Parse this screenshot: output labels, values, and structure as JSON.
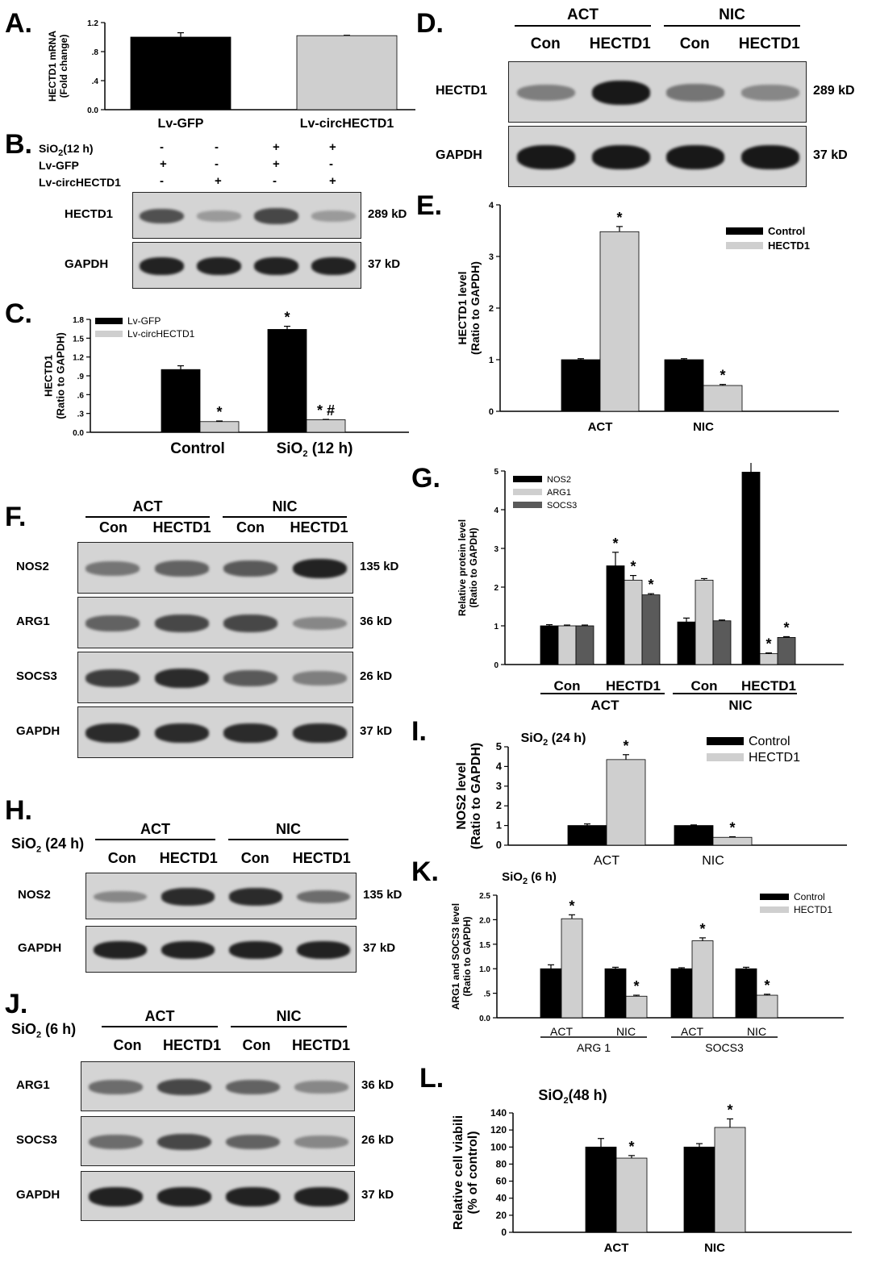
{
  "panels": {
    "A": "A.",
    "B": "B.",
    "C": "C.",
    "D": "D.",
    "E": "E.",
    "F": "F.",
    "G": "G.",
    "H": "H.",
    "I": "I.",
    "J": "J.",
    "K": "K.",
    "L": "L."
  },
  "blot_b": {
    "rows": [
      {
        "label": "SiO2(12 h)",
        "marks": [
          "-",
          "-",
          "+",
          "+"
        ]
      },
      {
        "label": "Lv-GFP",
        "marks": [
          "+",
          "-",
          "+",
          "-"
        ]
      },
      {
        "label": "Lv-circHECTD1",
        "marks": [
          "-",
          "+",
          "-",
          "+"
        ]
      }
    ],
    "blots": [
      {
        "name": "HECTD1",
        "kd": "289 kD",
        "bands": [
          0.65,
          0.25,
          0.7,
          0.25
        ]
      },
      {
        "name": "GAPDH",
        "kd": "37 kD",
        "bands": [
          0.9,
          0.9,
          0.9,
          0.9
        ]
      }
    ]
  },
  "blot_d": {
    "groups": [
      "ACT",
      "NIC"
    ],
    "lanes": [
      "Con",
      "HECTD1",
      "Con",
      "HECTD1"
    ],
    "blots": [
      {
        "name": "HECTD1",
        "kd": "289 kD",
        "bands": [
          0.4,
          0.95,
          0.45,
          0.35
        ]
      },
      {
        "name": "GAPDH",
        "kd": "37 kD",
        "bands": [
          0.95,
          0.95,
          0.95,
          0.95
        ]
      }
    ]
  },
  "blot_f": {
    "groups": [
      "ACT",
      "NIC"
    ],
    "lanes": [
      "Con",
      "HECTD1",
      "Con",
      "HECTD1"
    ],
    "blots": [
      {
        "name": "NOS2",
        "kd": "135 kD",
        "bands": [
          0.45,
          0.55,
          0.6,
          0.9
        ]
      },
      {
        "name": "ARG1",
        "kd": "36 kD",
        "bands": [
          0.55,
          0.7,
          0.7,
          0.35
        ]
      },
      {
        "name": "SOCS3",
        "kd": "26 kD",
        "bands": [
          0.75,
          0.85,
          0.6,
          0.4
        ]
      },
      {
        "name": "GAPDH",
        "kd": "37 kD",
        "bands": [
          0.85,
          0.85,
          0.85,
          0.85
        ]
      }
    ]
  },
  "blot_h": {
    "condition": "SiO2 (24 h)",
    "groups": [
      "ACT",
      "NIC"
    ],
    "lanes": [
      "Con",
      "HECTD1",
      "Con",
      "HECTD1"
    ],
    "blots": [
      {
        "name": "NOS2",
        "kd": "135 kD",
        "bands": [
          0.35,
          0.85,
          0.85,
          0.5
        ]
      },
      {
        "name": "GAPDH",
        "kd": "37 kD",
        "bands": [
          0.9,
          0.9,
          0.9,
          0.9
        ]
      }
    ]
  },
  "blot_j": {
    "condition": "SiO2 (6 h)",
    "groups": [
      "ACT",
      "NIC"
    ],
    "lanes": [
      "Con",
      "HECTD1",
      "Con",
      "HECTD1"
    ],
    "blots": [
      {
        "name": "ARG1",
        "kd": "36 kD",
        "bands": [
          0.5,
          0.7,
          0.55,
          0.35
        ]
      },
      {
        "name": "SOCS3",
        "kd": "26 kD",
        "bands": [
          0.5,
          0.7,
          0.55,
          0.35
        ]
      },
      {
        "name": "GAPDH",
        "kd": "37 kD",
        "bands": [
          0.9,
          0.9,
          0.9,
          0.9
        ]
      }
    ]
  },
  "chart_data": [
    {
      "id": "A",
      "type": "bar",
      "categories": [
        "Lv-GFP",
        "Lv-circHECTD1"
      ],
      "values": [
        1.0,
        1.02
      ],
      "errors": [
        0.06,
        0.005
      ],
      "colors": [
        "#000000",
        "#cfcfcf"
      ],
      "ylabel": "HECTD1 mRNA (Fold change)",
      "ylim": [
        0,
        1.2
      ],
      "yticks": [
        "0.0",
        ".4",
        ".8",
        "1.2"
      ],
      "ytick_values": [
        0,
        0.4,
        0.8,
        1.2
      ]
    },
    {
      "id": "C",
      "type": "bar",
      "categories": [
        "Control",
        "SiO2 (12 h)"
      ],
      "series": [
        {
          "name": "Lv-GFP",
          "values": [
            1.0,
            1.64
          ],
          "errors": [
            0.06,
            0.05
          ],
          "stars": [
            "",
            "*"
          ],
          "color": "#000000"
        },
        {
          "name": "Lv-circHECTD1",
          "values": [
            0.17,
            0.2
          ],
          "errors": [
            0.01,
            0.005
          ],
          "stars": [
            "*",
            "* #"
          ],
          "color": "#cfcfcf"
        }
      ],
      "ylabel": "HECTD1 (Ratio to GAPDH)",
      "ylim": [
        0,
        1.8
      ],
      "yticks": [
        "0.0",
        ".3",
        ".6",
        ".9",
        "1.2",
        "1.5",
        "1.8"
      ],
      "ytick_values": [
        0,
        0.3,
        0.6,
        0.9,
        1.2,
        1.5,
        1.8
      ],
      "legend": "top-left"
    },
    {
      "id": "E",
      "type": "bar",
      "categories": [
        "ACT",
        "NIC"
      ],
      "series": [
        {
          "name": "Control",
          "values": [
            1.0,
            1.0
          ],
          "errors": [
            0.02,
            0.02
          ],
          "stars": [
            "",
            ""
          ],
          "color": "#000000"
        },
        {
          "name": "HECTD1",
          "values": [
            3.48,
            0.5
          ],
          "errors": [
            0.1,
            0.02
          ],
          "stars": [
            "*",
            "*"
          ],
          "color": "#cfcfcf"
        }
      ],
      "ylabel": "HECTD1 level (Ratio to GAPDH)",
      "ylim": [
        0,
        4
      ],
      "yticks": [
        "0",
        "1",
        "2",
        "3",
        "4"
      ],
      "ytick_values": [
        0,
        1,
        2,
        3,
        4
      ],
      "legend": "top-right"
    },
    {
      "id": "G",
      "type": "bar",
      "categories": [
        "Con",
        "HECTD1",
        "Con",
        "HECTD1"
      ],
      "groups": [
        "ACT",
        "NIC"
      ],
      "series": [
        {
          "name": "NOS2",
          "values": [
            1.0,
            2.55,
            1.1,
            4.97
          ],
          "errors": [
            0.03,
            0.35,
            0.1,
            0.5
          ],
          "stars": [
            "",
            "*",
            "",
            "*"
          ],
          "color": "#000000"
        },
        {
          "name": "ARG1",
          "values": [
            1.0,
            2.18,
            2.18,
            0.28
          ],
          "errors": [
            0.02,
            0.12,
            0.04,
            0.02
          ],
          "stars": [
            "",
            "*",
            "",
            "*"
          ],
          "color": "#cfcfcf"
        },
        {
          "name": "SOCS3",
          "values": [
            1.0,
            1.8,
            1.13,
            0.7
          ],
          "errors": [
            0.02,
            0.03,
            0.02,
            0.02
          ],
          "stars": [
            "",
            "*",
            "",
            "*"
          ],
          "color": "#5a5a5a"
        }
      ],
      "ylabel": "Relative protein level (Ratio to GAPDH)",
      "ylim": [
        0,
        5
      ],
      "yticks": [
        "0",
        "1",
        "2",
        "3",
        "4",
        "5"
      ],
      "ytick_values": [
        0,
        1,
        2,
        3,
        4,
        5
      ],
      "legend": "top-left"
    },
    {
      "id": "I",
      "type": "bar",
      "title": "SiO2 (24 h)",
      "categories": [
        "ACT",
        "NIC"
      ],
      "series": [
        {
          "name": "Control",
          "values": [
            1.0,
            1.0
          ],
          "errors": [
            0.08,
            0.03
          ],
          "stars": [
            "",
            ""
          ],
          "color": "#000000"
        },
        {
          "name": "HECTD1",
          "values": [
            4.35,
            0.4
          ],
          "errors": [
            0.25,
            0.03
          ],
          "stars": [
            "*",
            "*"
          ],
          "color": "#cfcfcf"
        }
      ],
      "ylabel": "NOS2 level (Ratio to GAPDH)",
      "ylim": [
        0,
        5
      ],
      "yticks": [
        "0",
        "1",
        "2",
        "3",
        "4",
        "5"
      ],
      "ytick_values": [
        0,
        1,
        2,
        3,
        4,
        5
      ],
      "legend": "top-right"
    },
    {
      "id": "K",
      "type": "bar",
      "title": "SiO2 (6 h)",
      "categories": [
        "ACT",
        "NIC",
        "ACT",
        "NIC"
      ],
      "groups": [
        "ARG 1",
        "SOCS3"
      ],
      "series": [
        {
          "name": "Control",
          "values": [
            1.0,
            1.0,
            1.0,
            1.0
          ],
          "errors": [
            0.08,
            0.03,
            0.02,
            0.03
          ],
          "stars": [
            "",
            "",
            "",
            ""
          ],
          "color": "#000000"
        },
        {
          "name": "HECTD1",
          "values": [
            2.02,
            0.44,
            1.57,
            0.46
          ],
          "errors": [
            0.08,
            0.02,
            0.06,
            0.02
          ],
          "stars": [
            "*",
            "*",
            "*",
            "*"
          ],
          "color": "#cfcfcf"
        }
      ],
      "ylabel": "ARG1 and SOCS3 level (Ratio to GAPDH)",
      "ylim": [
        0,
        2.5
      ],
      "yticks": [
        "0.0",
        ".5",
        "1.0",
        "1.5",
        "2.0",
        "2.5"
      ],
      "ytick_values": [
        0,
        0.5,
        1.0,
        1.5,
        2.0,
        2.5
      ],
      "legend": "top-right"
    },
    {
      "id": "L",
      "type": "bar",
      "title": "SiO2(48 h)",
      "categories": [
        "ACT",
        "NIC"
      ],
      "series": [
        {
          "name": "",
          "values": [
            100,
            100
          ],
          "errors": [
            10,
            4
          ],
          "stars": [
            "",
            ""
          ],
          "color": "#000000"
        },
        {
          "name": "",
          "values": [
            87,
            123
          ],
          "errors": [
            3,
            10
          ],
          "stars": [
            "*",
            "*"
          ],
          "color": "#cfcfcf"
        }
      ],
      "ylabel": "Relative cell viabili (% of control)",
      "ylim": [
        0,
        140
      ],
      "yticks": [
        "0",
        "20",
        "40",
        "60",
        "80",
        "100",
        "120",
        "140"
      ],
      "ytick_values": [
        0,
        20,
        40,
        60,
        80,
        100,
        120,
        140
      ]
    }
  ]
}
